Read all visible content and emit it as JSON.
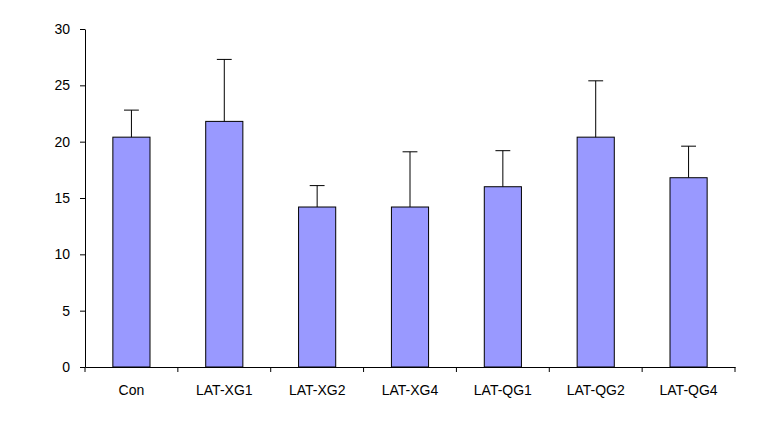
{
  "chart_data": {
    "type": "bar",
    "categories": [
      "Con",
      "LAT-XG1",
      "LAT-XG2",
      "LAT-XG4",
      "LAT-QG1",
      "LAT-QG2",
      "LAT-QG4"
    ],
    "values": [
      20.4,
      21.8,
      14.2,
      14.2,
      16.0,
      20.4,
      16.8
    ],
    "errors": [
      2.4,
      5.5,
      1.9,
      4.9,
      3.2,
      5.0,
      2.8
    ],
    "color": "#9999ff",
    "ylim": [
      0,
      30
    ],
    "yticks": [
      0,
      5,
      10,
      15,
      20,
      25,
      30
    ],
    "grid": false
  }
}
